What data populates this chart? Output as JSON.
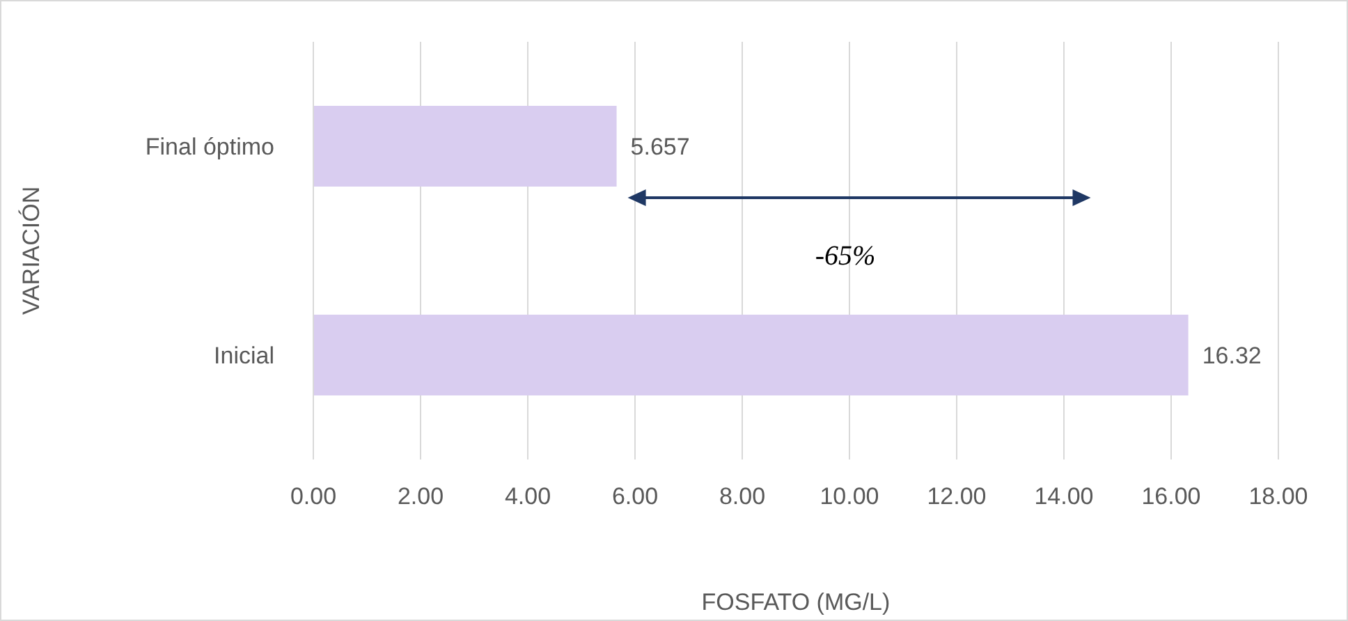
{
  "chart_data": {
    "type": "bar",
    "orientation": "horizontal",
    "categories": [
      "Final óptimo",
      "Inicial"
    ],
    "values": [
      5.657,
      16.32
    ],
    "color": "#d9cdf0",
    "xlim": [
      0,
      18
    ],
    "xticks": [
      {
        "value": 0,
        "label": "0.00"
      },
      {
        "value": 2,
        "label": "2.00"
      },
      {
        "value": 4,
        "label": "4.00"
      },
      {
        "value": 6,
        "label": "6.00"
      },
      {
        "value": 8,
        "label": "8.00"
      },
      {
        "value": 10,
        "label": "10.00"
      },
      {
        "value": 12,
        "label": "12.00"
      },
      {
        "value": 14,
        "label": "14.00"
      },
      {
        "value": 16,
        "label": "16.00"
      },
      {
        "value": 18,
        "label": "18.00"
      }
    ],
    "xlabel": "FOSFATO (MG/L)",
    "ylabel": "VARIACIÓN",
    "data_labels": true,
    "grid": "x",
    "annotations": [
      "-65%"
    ]
  }
}
